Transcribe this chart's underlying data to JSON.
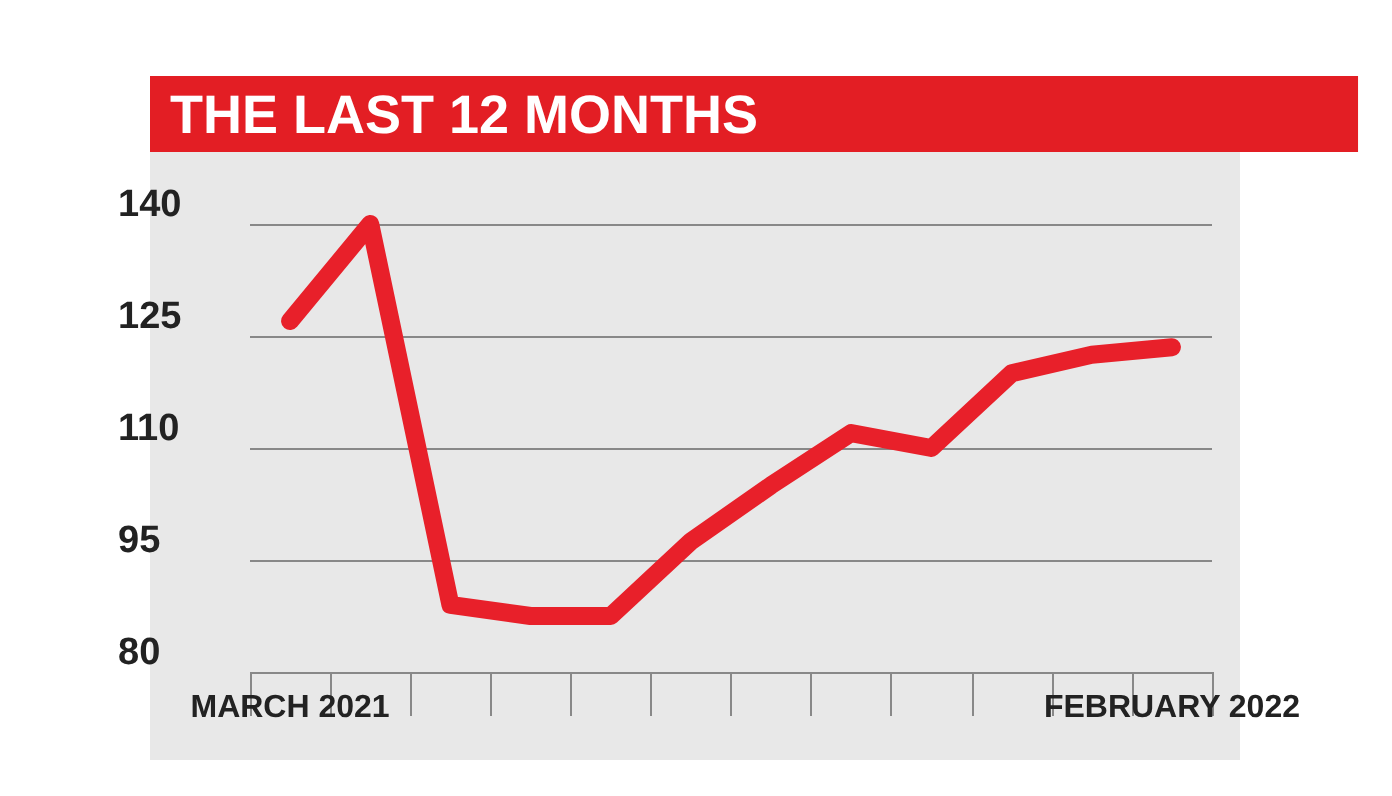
{
  "chart_data": {
    "type": "line",
    "title": "THE LAST 12 MONTHS",
    "categories": [
      "MARCH 2021",
      null,
      null,
      null,
      null,
      null,
      null,
      null,
      null,
      null,
      null,
      "FEBRUARY 2022"
    ],
    "series": [
      {
        "color": "#e8202a",
        "values": [
          127,
          140,
          89,
          87.5,
          87.5,
          97.5,
          105,
          112,
          110,
          120,
          122.5,
          123.5
        ]
      }
    ],
    "ylim": [
      80,
      140
    ],
    "yticks": [
      80,
      95,
      110,
      125,
      140
    ],
    "grid": "y",
    "marker": "none",
    "line_style": "solid"
  }
}
